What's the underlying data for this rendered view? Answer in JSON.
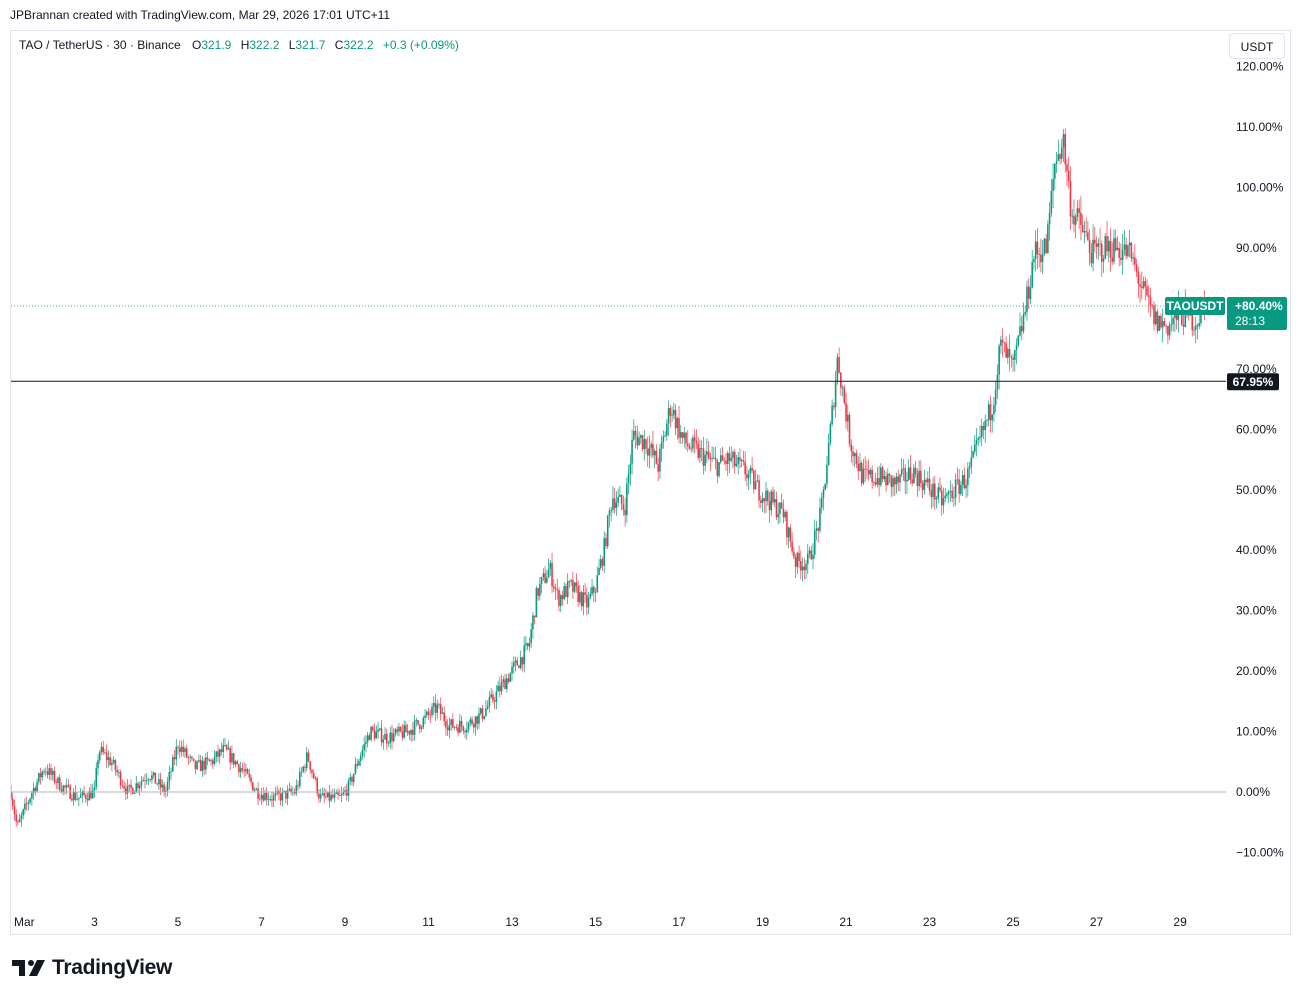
{
  "attribution": "JPBrannan created with TradingView.com, Mar 29, 2026 17:01 UTC+11",
  "legend": {
    "symbol": "TAO / TetherUS · 30 · Binance",
    "o_label": "O",
    "o_value": "321.9",
    "h_label": "H",
    "h_value": "322.2",
    "l_label": "L",
    "l_value": "321.7",
    "c_label": "C",
    "c_value": "322.2",
    "change": "+0.3 (+0.09%)"
  },
  "unit_button": "USDT",
  "brand": "TradingView",
  "colors": {
    "up": "#089981",
    "down": "#f23645",
    "zero_line": "#b2b5be",
    "level_line": "#131722",
    "last_line": "#089981"
  },
  "chart_data": {
    "type": "candlestick",
    "y_scale": "percent",
    "ylim": [
      -15,
      120
    ],
    "y_ticks": [
      -10,
      0,
      10,
      20,
      30,
      40,
      50,
      60,
      70,
      80,
      90,
      100,
      110,
      120
    ],
    "y_tick_labels": [
      "−10.00%",
      "0.00%",
      "10.00%",
      "20.00%",
      "30.00%",
      "40.00%",
      "50.00%",
      "60.00%",
      "70.00%",
      "80.00%",
      "90.00%",
      "100.00%",
      "110.00%",
      "120.00%"
    ],
    "x_range_days": [
      1,
      30.1
    ],
    "x_ticks": [
      1,
      3,
      5,
      7,
      9,
      11,
      13,
      15,
      17,
      19,
      21,
      23,
      25,
      27,
      29
    ],
    "x_tick_labels": [
      "Mar",
      "3",
      "5",
      "7",
      "9",
      "11",
      "13",
      "15",
      "17",
      "19",
      "21",
      "23",
      "25",
      "27",
      "29"
    ],
    "path": [
      [
        1.0,
        0
      ],
      [
        1.15,
        -6
      ],
      [
        1.5,
        0
      ],
      [
        1.8,
        4
      ],
      [
        2.2,
        1
      ],
      [
        2.6,
        -1
      ],
      [
        3.0,
        0
      ],
      [
        3.1,
        7
      ],
      [
        3.4,
        5
      ],
      [
        3.8,
        0
      ],
      [
        4.3,
        3
      ],
      [
        4.7,
        0
      ],
      [
        5.0,
        8
      ],
      [
        5.4,
        4
      ],
      [
        5.8,
        5
      ],
      [
        6.1,
        7
      ],
      [
        6.5,
        4
      ],
      [
        6.9,
        0
      ],
      [
        7.3,
        -1
      ],
      [
        7.8,
        0
      ],
      [
        8.1,
        6
      ],
      [
        8.4,
        -1
      ],
      [
        8.9,
        -1
      ],
      [
        9.1,
        1
      ],
      [
        9.3,
        5
      ],
      [
        9.6,
        10
      ],
      [
        10.0,
        9
      ],
      [
        10.5,
        10
      ],
      [
        10.9,
        12
      ],
      [
        11.2,
        14
      ],
      [
        11.5,
        11
      ],
      [
        11.9,
        11
      ],
      [
        12.3,
        13
      ],
      [
        12.6,
        16
      ],
      [
        13.0,
        20
      ],
      [
        13.4,
        24
      ],
      [
        13.6,
        33
      ],
      [
        13.9,
        37
      ],
      [
        14.1,
        32
      ],
      [
        14.4,
        34
      ],
      [
        14.8,
        31
      ],
      [
        15.0,
        34
      ],
      [
        15.2,
        40
      ],
      [
        15.4,
        49
      ],
      [
        15.7,
        47
      ],
      [
        15.9,
        59
      ],
      [
        16.2,
        58
      ],
      [
        16.5,
        54
      ],
      [
        16.8,
        64
      ],
      [
        17.1,
        58
      ],
      [
        17.5,
        56
      ],
      [
        17.9,
        54
      ],
      [
        18.2,
        55
      ],
      [
        18.6,
        53
      ],
      [
        18.9,
        50
      ],
      [
        19.2,
        48
      ],
      [
        19.5,
        46
      ],
      [
        19.8,
        38
      ],
      [
        20.1,
        38
      ],
      [
        20.4,
        46
      ],
      [
        20.6,
        58
      ],
      [
        20.8,
        72
      ],
      [
        21.1,
        58
      ],
      [
        21.4,
        52
      ],
      [
        21.8,
        52
      ],
      [
        22.2,
        51
      ],
      [
        22.6,
        53
      ],
      [
        22.9,
        51
      ],
      [
        23.3,
        48
      ],
      [
        23.6,
        50
      ],
      [
        23.9,
        52
      ],
      [
        24.2,
        58
      ],
      [
        24.5,
        64
      ],
      [
        24.7,
        74
      ],
      [
        25.0,
        70
      ],
      [
        25.3,
        80
      ],
      [
        25.5,
        89
      ],
      [
        25.8,
        90
      ],
      [
        26.0,
        104
      ],
      [
        26.2,
        108
      ],
      [
        26.4,
        96
      ],
      [
        26.6,
        94
      ],
      [
        26.9,
        89
      ],
      [
        27.2,
        90
      ],
      [
        27.5,
        90
      ],
      [
        27.8,
        89
      ],
      [
        28.1,
        83
      ],
      [
        28.4,
        78
      ],
      [
        28.7,
        77
      ],
      [
        29.0,
        79
      ],
      [
        29.4,
        78
      ],
      [
        29.6,
        80.4
      ]
    ],
    "horizontal_lines": [
      {
        "value": 0,
        "style": "zero"
      },
      {
        "value": 67.95,
        "label": "67.95%",
        "style": "level"
      },
      {
        "value": 80.4,
        "style": "last-price"
      }
    ],
    "last_price_tag": {
      "symbol": "TAOUSDT",
      "change": "+80.40%",
      "countdown": "28:13"
    }
  }
}
